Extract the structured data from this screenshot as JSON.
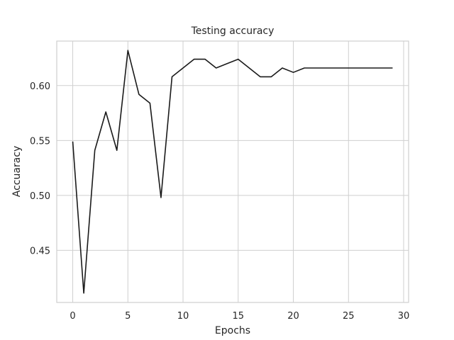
{
  "chart_data": {
    "type": "line",
    "title": "Testing accuracy",
    "xlabel": "Epochs",
    "ylabel": "Accuaracy",
    "xlim": [
      -1.45,
      30.45
    ],
    "ylim": [
      0.4025,
      0.6405
    ],
    "xticks": [
      0,
      5,
      10,
      15,
      20,
      25,
      30
    ],
    "yticks": [
      0.45,
      0.5,
      0.55,
      0.6
    ],
    "grid": true,
    "legend": "none",
    "line_color": "#1a1a1a",
    "x": [
      0,
      1,
      2,
      3,
      4,
      5,
      6,
      7,
      8,
      9,
      10,
      11,
      12,
      13,
      14,
      15,
      16,
      17,
      18,
      19,
      20,
      21,
      22,
      23,
      24,
      25,
      26,
      27,
      28,
      29
    ],
    "values": [
      0.549,
      0.411,
      0.541,
      0.576,
      0.541,
      0.632,
      0.592,
      0.584,
      0.498,
      0.608,
      0.616,
      0.624,
      0.624,
      0.616,
      0.62,
      0.624,
      0.616,
      0.608,
      0.608,
      0.616,
      0.612,
      0.616,
      0.616,
      0.616,
      0.616,
      0.616,
      0.616,
      0.616,
      0.616,
      0.616
    ]
  }
}
